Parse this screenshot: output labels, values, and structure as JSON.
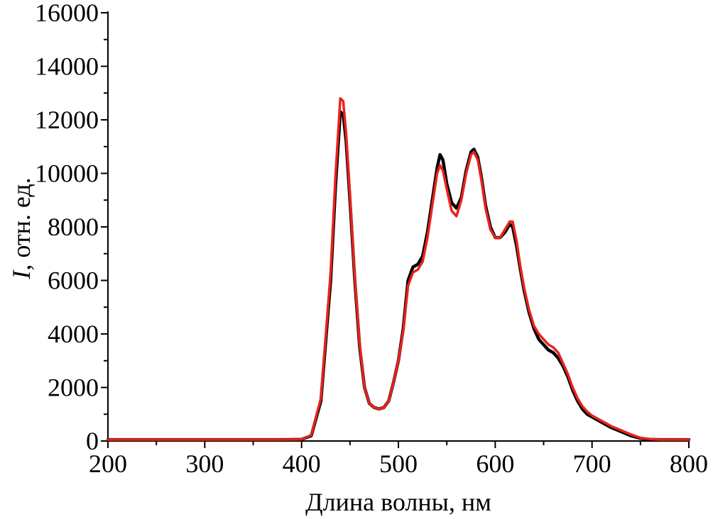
{
  "chart_data": {
    "type": "line",
    "xlabel": "Длина волны, нм",
    "ylabel_italic": "I",
    "ylabel_rest": ", отн. ед.",
    "xlim": [
      200,
      800
    ],
    "ylim": [
      0,
      16000
    ],
    "x_ticks": [
      200,
      300,
      400,
      500,
      600,
      700,
      800
    ],
    "y_ticks": [
      0,
      2000,
      4000,
      6000,
      8000,
      10000,
      12000,
      14000,
      16000
    ],
    "grid": false,
    "legend": "none",
    "series": [
      {
        "color": "#000000",
        "x": [
          200,
          300,
          380,
          400,
          410,
          420,
          430,
          435,
          440,
          443,
          446,
          450,
          455,
          460,
          465,
          470,
          475,
          480,
          485,
          490,
          495,
          500,
          505,
          510,
          515,
          520,
          525,
          530,
          535,
          540,
          543,
          546,
          550,
          555,
          560,
          565,
          570,
          575,
          578,
          582,
          586,
          590,
          595,
          600,
          605,
          610,
          615,
          618,
          622,
          626,
          630,
          635,
          640,
          645,
          650,
          655,
          660,
          665,
          670,
          675,
          680,
          685,
          690,
          695,
          700,
          710,
          720,
          730,
          740,
          750,
          760,
          770,
          780,
          800
        ],
        "y": [
          50,
          50,
          50,
          60,
          200,
          1500,
          6000,
          9500,
          12300,
          12200,
          11200,
          9000,
          6000,
          3500,
          2000,
          1400,
          1250,
          1200,
          1250,
          1500,
          2200,
          3000,
          4200,
          6000,
          6500,
          6600,
          6900,
          7800,
          9000,
          10200,
          10700,
          10500,
          9600,
          8900,
          8700,
          9100,
          10100,
          10800,
          10900,
          10600,
          9800,
          8800,
          8000,
          7600,
          7600,
          7800,
          8100,
          8000,
          7300,
          6400,
          5600,
          4800,
          4200,
          3800,
          3600,
          3400,
          3300,
          3100,
          2800,
          2400,
          1900,
          1500,
          1200,
          1000,
          900,
          700,
          500,
          350,
          200,
          100,
          60,
          50,
          50,
          50
        ]
      },
      {
        "color": "#e8231c",
        "x": [
          200,
          300,
          380,
          400,
          410,
          420,
          430,
          435,
          440,
          443,
          446,
          450,
          455,
          460,
          465,
          470,
          475,
          480,
          485,
          490,
          495,
          500,
          505,
          510,
          515,
          520,
          525,
          530,
          535,
          540,
          543,
          546,
          550,
          555,
          560,
          565,
          570,
          575,
          578,
          582,
          586,
          590,
          595,
          600,
          605,
          610,
          615,
          618,
          622,
          626,
          630,
          635,
          640,
          645,
          650,
          655,
          660,
          665,
          670,
          675,
          680,
          685,
          690,
          695,
          700,
          710,
          720,
          730,
          740,
          750,
          760,
          770,
          780,
          800
        ],
        "y": [
          50,
          50,
          50,
          60,
          220,
          1600,
          6300,
          9900,
          12800,
          12700,
          11500,
          9200,
          6100,
          3600,
          2000,
          1400,
          1250,
          1200,
          1250,
          1500,
          2200,
          3000,
          4100,
          5800,
          6300,
          6400,
          6700,
          7600,
          8800,
          10000,
          10300,
          10100,
          9400,
          8600,
          8400,
          9000,
          10000,
          10700,
          10800,
          10500,
          9700,
          8700,
          7900,
          7600,
          7600,
          7900,
          8200,
          8200,
          7500,
          6500,
          5700,
          4900,
          4300,
          4000,
          3800,
          3600,
          3500,
          3300,
          2900,
          2500,
          2000,
          1600,
          1300,
          1100,
          950,
          750,
          550,
          400,
          250,
          120,
          70,
          50,
          50,
          50
        ]
      }
    ]
  }
}
